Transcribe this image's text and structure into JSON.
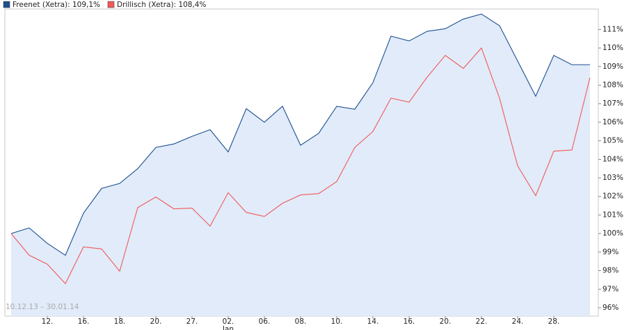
{
  "chart_data": {
    "type": "line",
    "subtitle": "10.12.13 – 30.01.14",
    "categories": [
      null,
      null,
      "12.",
      null,
      "16.",
      null,
      "18.",
      null,
      "20.",
      null,
      "27.",
      null,
      "02.\nJan",
      null,
      "06.",
      null,
      "08.",
      null,
      "10.",
      null,
      "14.",
      null,
      "16.",
      null,
      "20.",
      null,
      "22.",
      null,
      "24.",
      null,
      "28.",
      null,
      null
    ],
    "series": [
      {
        "name": "Freenet (Xetra): 109,1%",
        "color": "#1d4f91",
        "area_color": "#e1ebf9",
        "values": [
          100,
          100.3,
          99.47,
          98.83,
          101.1,
          102.43,
          102.7,
          103.5,
          104.64,
          104.83,
          105.24,
          105.6,
          104.4,
          106.73,
          106,
          106.86,
          104.76,
          105.4,
          106.86,
          106.7,
          108.13,
          110.64,
          110.38,
          110.9,
          111.04,
          111.56,
          111.83,
          111.2,
          109.3,
          107.4,
          109.6,
          109.1,
          109.1
        ]
      },
      {
        "name": "Drillisch (Xetra): 108,4%",
        "color": "#f05a5a",
        "values": [
          100,
          98.83,
          98.35,
          97.3,
          99.28,
          99.17,
          97.97,
          101.4,
          101.97,
          101.33,
          101.37,
          100.4,
          102.2,
          101.14,
          100.92,
          101.63,
          102.08,
          102.15,
          102.8,
          104.64,
          105.5,
          107.3,
          107.08,
          108.43,
          109.6,
          108.9,
          110,
          107.3,
          103.65,
          102.04,
          104.44,
          104.5,
          108.4
        ]
      }
    ],
    "ylim": [
      95.55,
      112.1
    ],
    "yticks": [
      {
        "value": 96,
        "label": "96%"
      },
      {
        "value": 97,
        "label": "97%"
      },
      {
        "value": 98,
        "label": "98%"
      },
      {
        "value": 99,
        "label": "99%"
      },
      {
        "value": 100,
        "label": "100%"
      },
      {
        "value": 101,
        "label": "101%"
      },
      {
        "value": 102,
        "label": "102%"
      },
      {
        "value": 103,
        "label": "103%"
      },
      {
        "value": 104,
        "label": "104%"
      },
      {
        "value": 105,
        "label": "105%"
      },
      {
        "value": 106,
        "label": "106%"
      },
      {
        "value": 107,
        "label": "107%"
      },
      {
        "value": 108,
        "label": "108%"
      },
      {
        "value": 109,
        "label": "109%"
      },
      {
        "value": 110,
        "label": "110%"
      },
      {
        "value": 111,
        "label": "111%"
      }
    ],
    "grid": false
  }
}
